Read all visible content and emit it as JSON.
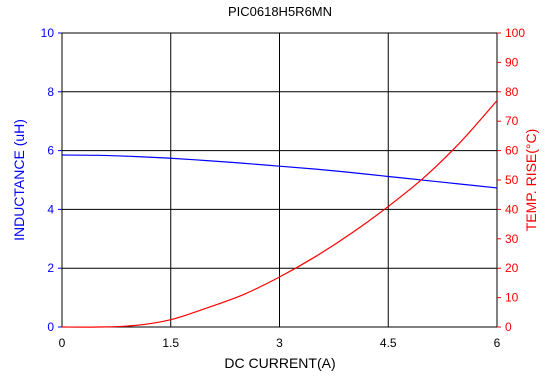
{
  "chart_data": {
    "type": "line",
    "title": "PIC0618H5R6MN",
    "xlabel": "DC CURRENT(A)",
    "ylabel_left": "INDUCTANCE (uH)",
    "ylabel_right": "TEMP. RISE(°C)",
    "xlim": [
      0,
      6
    ],
    "ylim_left": [
      0,
      10
    ],
    "ylim_right": [
      0,
      100
    ],
    "x_ticks": [
      "0",
      "1.5",
      "3",
      "4.5",
      "6"
    ],
    "y_left_ticks": [
      "0",
      "2",
      "4",
      "6",
      "8",
      "10"
    ],
    "y_right_ticks": [
      "0",
      "10",
      "20",
      "30",
      "40",
      "50",
      "60",
      "70",
      "80",
      "90",
      "100"
    ],
    "grid": true,
    "colors": {
      "left_axis": "#0000ff",
      "right_axis": "#ff0000",
      "grid": "#000000"
    },
    "series": [
      {
        "axis": "left",
        "color": "#0000ff",
        "x": [
          0,
          0.5,
          1.0,
          1.5,
          2.0,
          2.5,
          3.0,
          3.5,
          4.0,
          4.5,
          5.0,
          5.5,
          6.0
        ],
        "y": [
          5.85,
          5.84,
          5.8,
          5.74,
          5.66,
          5.57,
          5.47,
          5.37,
          5.25,
          5.12,
          4.99,
          4.86,
          4.73
        ]
      },
      {
        "axis": "right",
        "color": "#ff0000",
        "x": [
          0,
          0.5,
          1.0,
          1.5,
          2.0,
          2.5,
          3.0,
          3.5,
          4.0,
          4.5,
          5.0,
          5.5,
          6.0
        ],
        "y": [
          0,
          0,
          0.5,
          2.5,
          6.5,
          11,
          17,
          24,
          32,
          41,
          51,
          63,
          77
        ]
      }
    ]
  }
}
